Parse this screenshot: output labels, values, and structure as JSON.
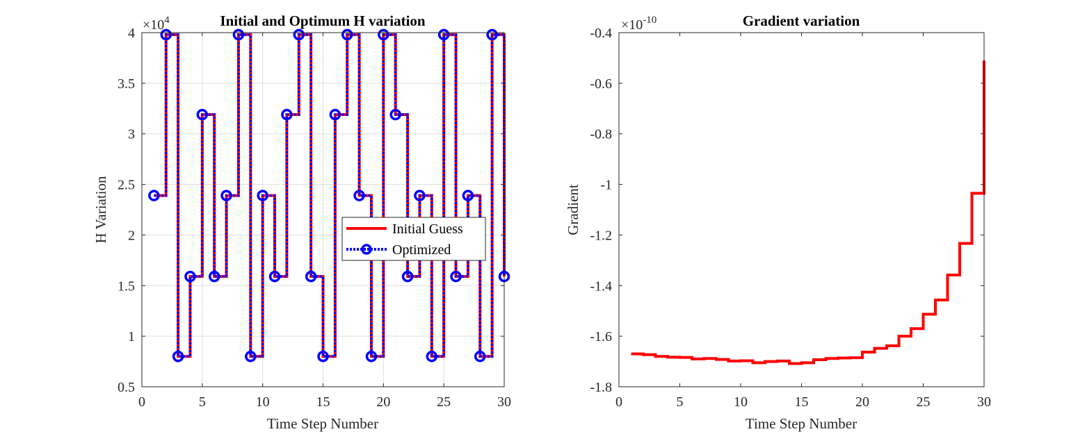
{
  "chart_data": [
    {
      "type": "line",
      "title": "Initial and Optimum H variation",
      "xlabel": "Time Step Number",
      "ylabel": "H Variation",
      "y_exponent_base": "×10",
      "y_exponent": "4",
      "xlim": [
        0,
        30
      ],
      "ylim": [
        0.5,
        4
      ],
      "x_ticks": [
        0,
        5,
        10,
        15,
        20,
        25,
        30
      ],
      "y_ticks": [
        0.5,
        1,
        1.5,
        2,
        2.5,
        3,
        3.5,
        4
      ],
      "y_tick_labels": [
        "0.5",
        "1",
        "1.5",
        "2",
        "2.5",
        "3",
        "3.5",
        "4"
      ],
      "grid": true,
      "legend_position": "center-right",
      "step": true,
      "x": [
        1,
        2,
        3,
        4,
        5,
        6,
        7,
        8,
        9,
        10,
        11,
        12,
        13,
        14,
        15,
        16,
        17,
        18,
        19,
        20,
        21,
        22,
        23,
        24,
        25,
        26,
        27,
        28,
        29,
        30
      ],
      "series": [
        {
          "name": "Initial Guess",
          "color": "#ff0000",
          "values": [
            2.39,
            3.98,
            0.8,
            1.59,
            3.19,
            1.59,
            2.39,
            3.98,
            0.8,
            2.39,
            1.59,
            3.19,
            3.98,
            1.59,
            0.8,
            3.19,
            3.98,
            2.39,
            0.8,
            3.98,
            3.19,
            1.59,
            2.39,
            0.8,
            3.98,
            1.59,
            2.39,
            0.8,
            3.98,
            1.59
          ]
        },
        {
          "name": "Optimized",
          "color": "#0000ff",
          "values": [
            2.39,
            3.98,
            0.8,
            1.59,
            3.19,
            1.59,
            2.39,
            3.98,
            0.8,
            2.39,
            1.59,
            3.19,
            3.98,
            1.59,
            0.8,
            3.19,
            3.98,
            2.39,
            0.8,
            3.98,
            3.19,
            1.59,
            2.39,
            0.8,
            3.98,
            1.59,
            2.39,
            0.8,
            3.98,
            1.59
          ]
        }
      ]
    },
    {
      "type": "line",
      "title": "Gradient variation",
      "xlabel": "Time Step Number",
      "ylabel": "Gradient",
      "y_exponent_base": "×10",
      "y_exponent": "-10",
      "xlim": [
        0,
        30
      ],
      "ylim": [
        -1.8,
        -0.4
      ],
      "x_ticks": [
        0,
        5,
        10,
        15,
        20,
        25,
        30
      ],
      "y_ticks": [
        -1.8,
        -1.6,
        -1.4,
        -1.2,
        -1,
        -0.8,
        -0.6,
        -0.4
      ],
      "y_tick_labels": [
        "-1.8",
        "-1.6",
        "-1.4",
        "-1.2",
        "-1",
        "-0.8",
        "-0.6",
        "-0.4"
      ],
      "grid": false,
      "step": true,
      "x": [
        1,
        2,
        3,
        4,
        5,
        6,
        7,
        8,
        9,
        10,
        11,
        12,
        13,
        14,
        15,
        16,
        17,
        18,
        19,
        20,
        21,
        22,
        23,
        24,
        25,
        26,
        27,
        28,
        29,
        30
      ],
      "series": [
        {
          "color": "#ff0000",
          "values": [
            -1.67,
            -1.673,
            -1.68,
            -1.683,
            -1.684,
            -1.69,
            -1.688,
            -1.692,
            -1.698,
            -1.697,
            -1.705,
            -1.7,
            -1.698,
            -1.708,
            -1.705,
            -1.693,
            -1.688,
            -1.686,
            -1.685,
            -1.663,
            -1.648,
            -1.638,
            -1.6,
            -1.57,
            -1.513,
            -1.457,
            -1.358,
            -1.233,
            -1.035,
            -0.51
          ]
        }
      ]
    }
  ]
}
